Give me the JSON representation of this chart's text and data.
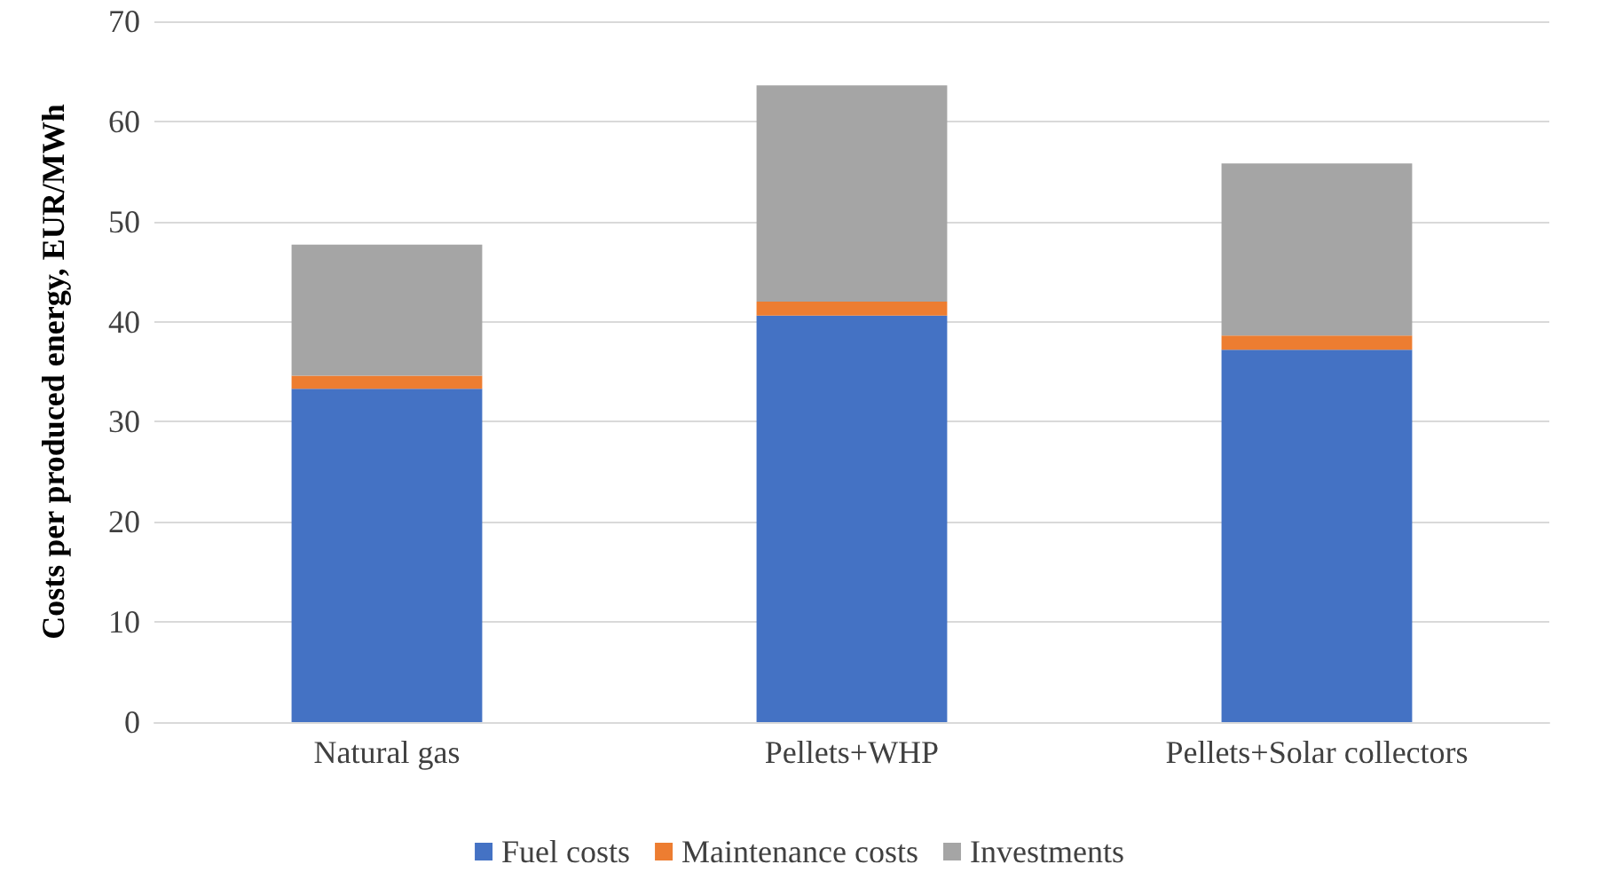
{
  "chart_data": {
    "type": "bar",
    "stacked": true,
    "ylabel": "Costs per produced energy, EUR/MWh",
    "categories": [
      "Natural gas",
      "Pellets+WHP",
      "Pellets+Solar collectors"
    ],
    "series": [
      {
        "name": "Fuel costs",
        "color": "#4472c4",
        "values": [
          33.3,
          40.6,
          37.2
        ]
      },
      {
        "name": "Maintenance costs",
        "color": "#ed7d31",
        "values": [
          1.3,
          1.4,
          1.4
        ]
      },
      {
        "name": "Investments",
        "color": "#a5a5a5",
        "values": [
          13.1,
          21.6,
          17.2
        ]
      }
    ],
    "ylim": [
      0,
      70
    ],
    "yticks": [
      0,
      10,
      20,
      30,
      40,
      50,
      60,
      70
    ],
    "grid": "y",
    "legend": "bottom"
  }
}
